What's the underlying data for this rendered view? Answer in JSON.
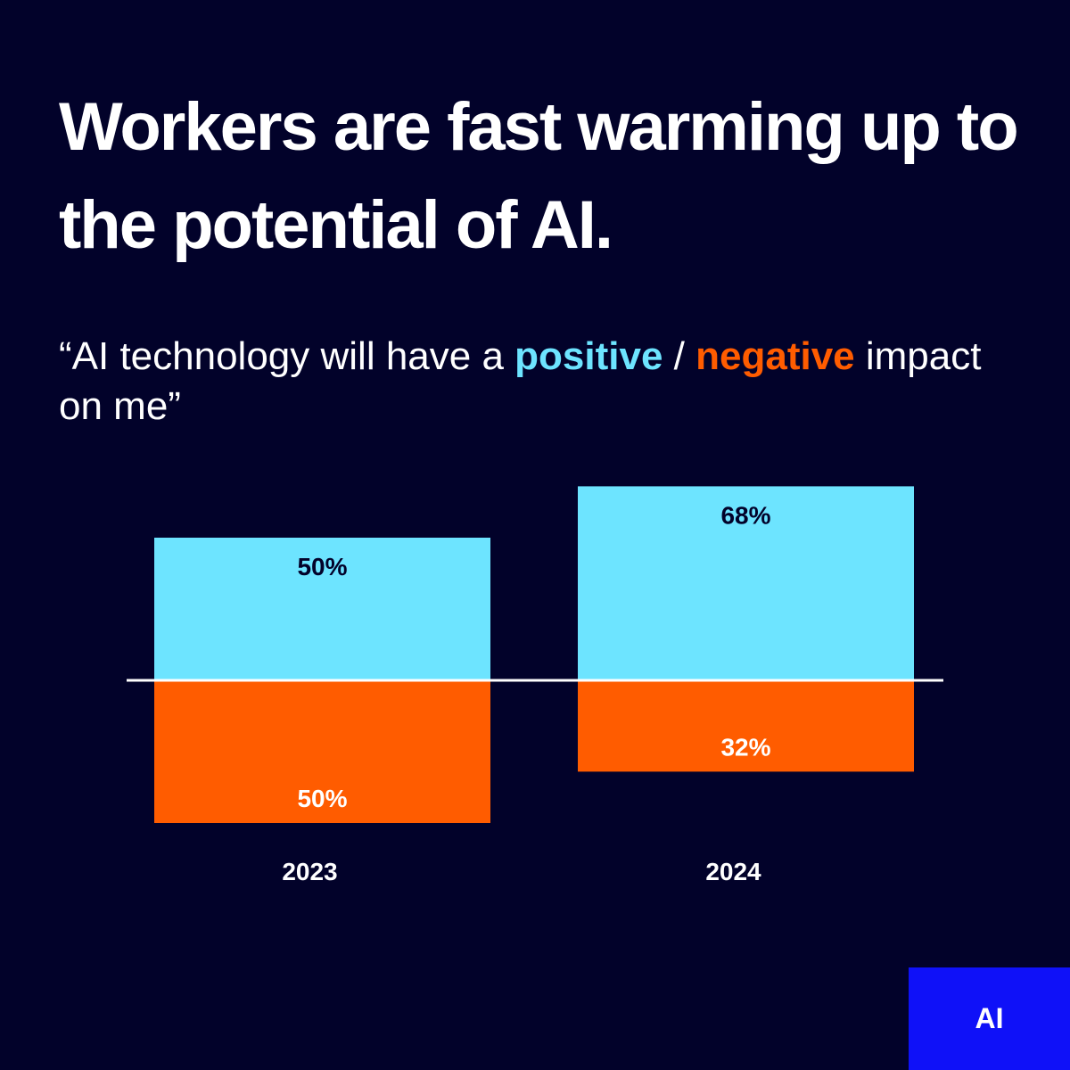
{
  "header": {
    "title": "Workers are fast warming up to the potential of AI."
  },
  "question": {
    "open_quote": "“",
    "prefix": "AI technology will have a ",
    "positive_word": "positive",
    "separator": " / ",
    "negative_word": "negative",
    "suffix": " impact on me",
    "close_quote": "”"
  },
  "colors": {
    "background": "#02022a",
    "positive": "#6de4ff",
    "negative": "#ff5c00",
    "badge": "#0f11f8"
  },
  "chart_data": {
    "type": "bar",
    "categories": [
      "2023",
      "2024"
    ],
    "series": [
      {
        "name": "positive",
        "values": [
          50,
          68
        ],
        "labels": [
          "50%",
          "68%"
        ]
      },
      {
        "name": "negative",
        "values": [
          50,
          32
        ],
        "labels": [
          "50%",
          "32%"
        ]
      }
    ],
    "layout": "diverging",
    "unit": "%",
    "grid": false,
    "legend": "none"
  },
  "badge": {
    "label": "AI"
  }
}
